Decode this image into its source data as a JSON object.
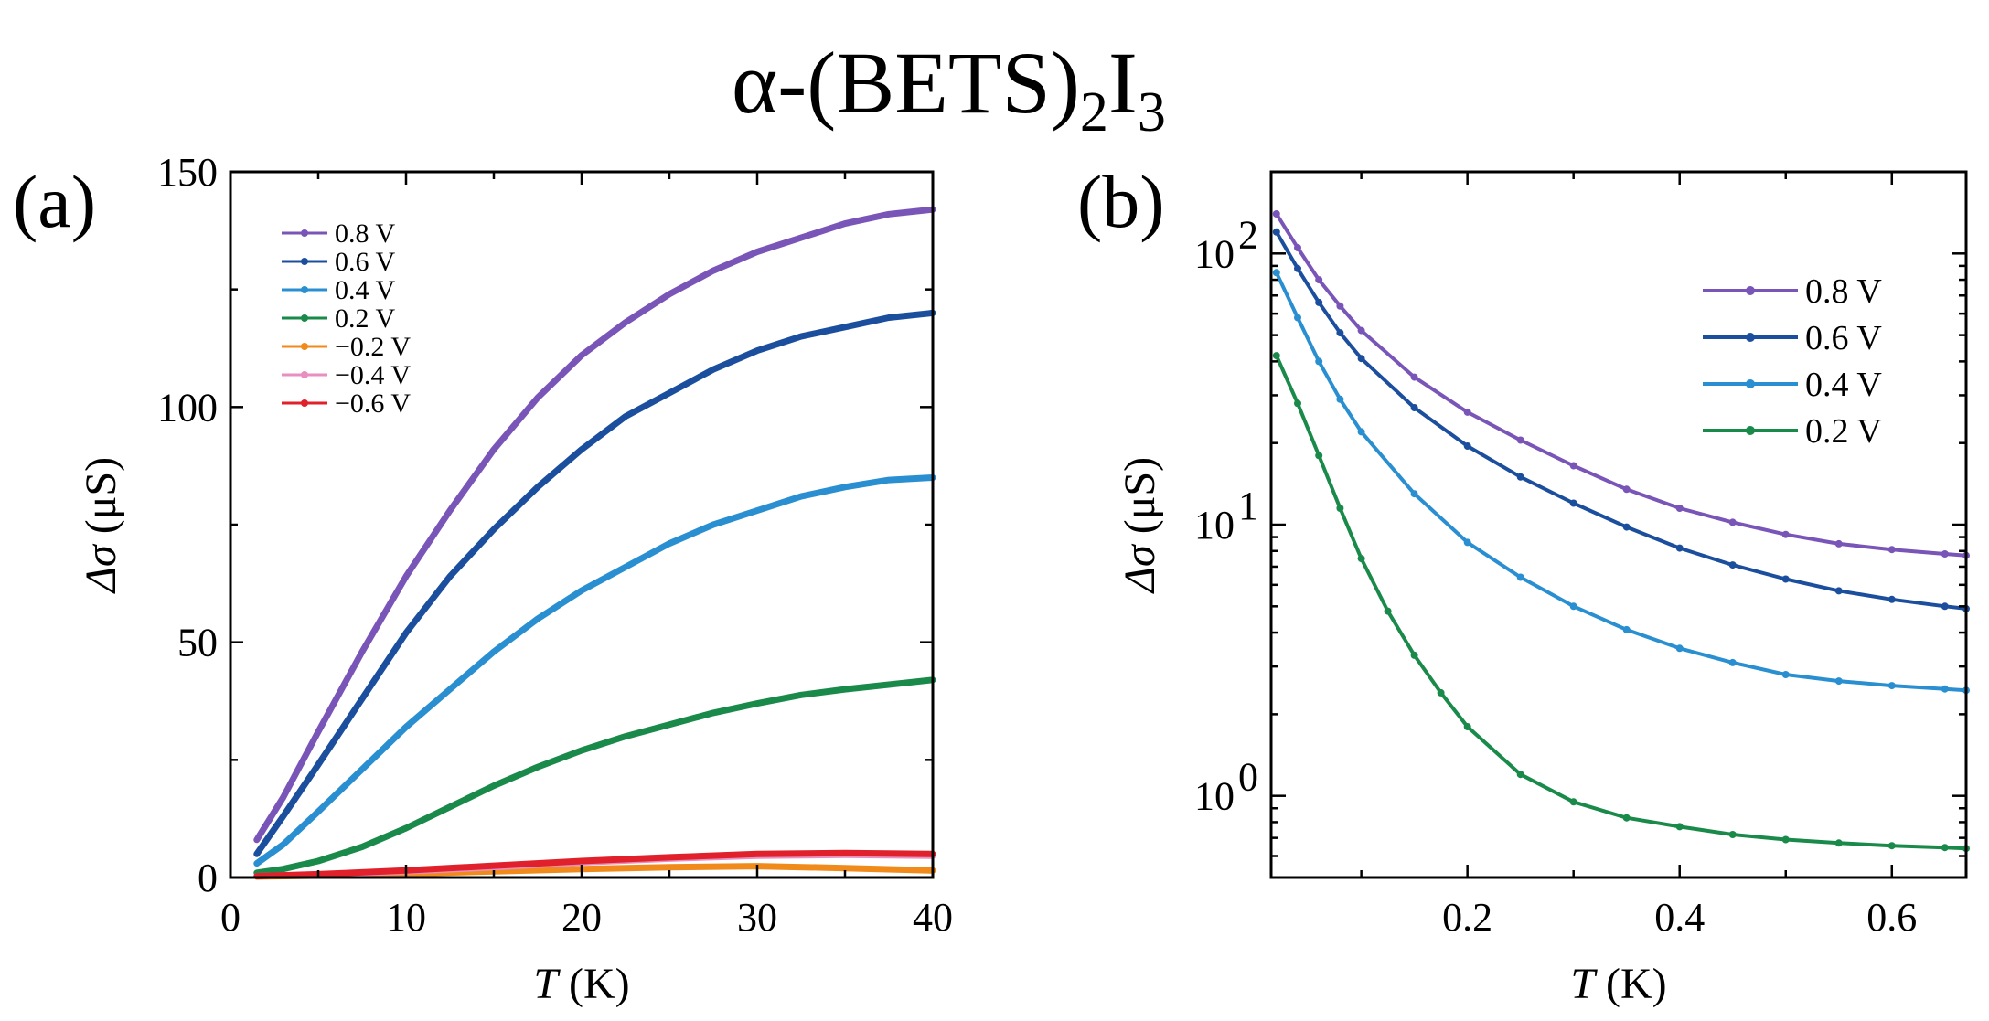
{
  "figure": {
    "title_main": "α-(BETS)",
    "title_sub1": "2",
    "title_mid": "I",
    "title_sub2": "3"
  },
  "colors": {
    "purple": "#7a55b8",
    "darkblue": "#1b4f9e",
    "lightblue": "#2a8fd0",
    "green": "#1a8a4a",
    "orange": "#f08a1a",
    "pink": "#e88fc0",
    "red": "#e0202a"
  },
  "chart_data": [
    {
      "type": "line",
      "panel_label": "(a)",
      "xlabel_italic": "T",
      "xlabel_rest": " (K)",
      "ylabel_italic": "Δσ",
      "ylabel_rest": " (μS)",
      "xlim": [
        0,
        40
      ],
      "ylim": [
        0,
        150
      ],
      "xticks": [
        0,
        10,
        20,
        30,
        40
      ],
      "xtick_labels": [
        "0",
        "10",
        "20",
        "30",
        "40"
      ],
      "yticks": [
        0,
        50,
        100,
        150
      ],
      "ytick_labels": [
        "0",
        "50",
        "100",
        "150"
      ],
      "legend_position": "top-left",
      "series": [
        {
          "name": "0.8 V",
          "color_key": "purple",
          "x": [
            1.5,
            3,
            5,
            7.5,
            10,
            12.5,
            15,
            17.5,
            20,
            22.5,
            25,
            27.5,
            30,
            32.5,
            35,
            37.5,
            40
          ],
          "y": [
            8,
            17,
            31,
            48,
            64,
            78,
            91,
            102,
            111,
            118,
            124,
            129,
            133,
            136,
            139,
            141,
            142
          ]
        },
        {
          "name": "0.6 V",
          "color_key": "darkblue",
          "x": [
            1.5,
            3,
            5,
            7.5,
            10,
            12.5,
            15,
            17.5,
            20,
            22.5,
            25,
            27.5,
            30,
            32.5,
            35,
            37.5,
            40
          ],
          "y": [
            5,
            13,
            24,
            38,
            52,
            64,
            74,
            83,
            91,
            98,
            103,
            108,
            112,
            115,
            117,
            119,
            120
          ]
        },
        {
          "name": "0.4 V",
          "color_key": "lightblue",
          "x": [
            1.5,
            3,
            5,
            7.5,
            10,
            12.5,
            15,
            17.5,
            20,
            22.5,
            25,
            27.5,
            30,
            32.5,
            35,
            37.5,
            40
          ],
          "y": [
            3,
            7,
            14,
            23,
            32,
            40,
            48,
            55,
            61,
            66,
            71,
            75,
            78,
            81,
            83,
            84.5,
            85
          ]
        },
        {
          "name": "0.2 V",
          "color_key": "green",
          "x": [
            1.5,
            3,
            5,
            7.5,
            10,
            12.5,
            15,
            17.5,
            20,
            22.5,
            25,
            27.5,
            30,
            32.5,
            35,
            37.5,
            40
          ],
          "y": [
            1,
            1.8,
            3.5,
            6.5,
            10.5,
            15,
            19.5,
            23.5,
            27,
            30,
            32.5,
            35,
            37,
            38.8,
            40,
            41,
            42
          ]
        },
        {
          "name": "−0.2 V",
          "color_key": "orange",
          "x": [
            1.5,
            5,
            10,
            15,
            20,
            25,
            30,
            35,
            40
          ],
          "y": [
            0.2,
            0.4,
            0.8,
            1.3,
            1.8,
            2.2,
            2.4,
            2.0,
            1.5
          ]
        },
        {
          "name": "−0.4 V",
          "color_key": "pink",
          "x": [
            1.5,
            5,
            10,
            15,
            20,
            25,
            30,
            35,
            40
          ],
          "y": [
            0.3,
            0.6,
            1.3,
            2.2,
            3.2,
            4.0,
            4.6,
            4.8,
            4.6
          ]
        },
        {
          "name": "−0.6 V",
          "color_key": "red",
          "x": [
            1.5,
            5,
            10,
            15,
            20,
            25,
            30,
            35,
            40
          ],
          "y": [
            0.3,
            0.7,
            1.5,
            2.5,
            3.5,
            4.3,
            5.0,
            5.2,
            5.0
          ]
        }
      ]
    },
    {
      "type": "line",
      "panel_label": "(b)",
      "xlabel_italic": "T",
      "xlabel_rest": " (K)",
      "ylabel_italic": "Δσ",
      "ylabel_rest": " (μS)",
      "xscale": "linear",
      "yscale": "log",
      "xlim": [
        0.015,
        0.67
      ],
      "ylim": [
        0.5,
        200
      ],
      "xticks": [
        0.2,
        0.4,
        0.6
      ],
      "xtick_labels": [
        "0.2",
        "0.4",
        "0.6"
      ],
      "yticks_major": [
        1,
        10,
        100
      ],
      "ytick_labels": [
        {
          "base": "10",
          "exp": "0"
        },
        {
          "base": "10",
          "exp": "1"
        },
        {
          "base": "10",
          "exp": "2"
        }
      ],
      "legend_position": "top-right",
      "series": [
        {
          "name": "0.8 V",
          "color_key": "purple",
          "x": [
            0.02,
            0.04,
            0.06,
            0.08,
            0.1,
            0.15,
            0.2,
            0.25,
            0.3,
            0.35,
            0.4,
            0.45,
            0.5,
            0.55,
            0.6,
            0.65,
            0.67
          ],
          "y": [
            140,
            105,
            80,
            64,
            52,
            35,
            26,
            20.5,
            16.5,
            13.5,
            11.5,
            10.2,
            9.2,
            8.5,
            8.1,
            7.8,
            7.7
          ]
        },
        {
          "name": "0.6 V",
          "color_key": "darkblue",
          "x": [
            0.02,
            0.04,
            0.06,
            0.08,
            0.1,
            0.15,
            0.2,
            0.25,
            0.3,
            0.35,
            0.4,
            0.45,
            0.5,
            0.55,
            0.6,
            0.65,
            0.67
          ],
          "y": [
            120,
            88,
            66,
            51,
            41,
            27,
            19.5,
            15,
            12,
            9.8,
            8.2,
            7.1,
            6.3,
            5.7,
            5.3,
            5.0,
            4.9
          ]
        },
        {
          "name": "0.4 V",
          "color_key": "lightblue",
          "x": [
            0.02,
            0.04,
            0.06,
            0.08,
            0.1,
            0.15,
            0.2,
            0.25,
            0.3,
            0.35,
            0.4,
            0.45,
            0.5,
            0.55,
            0.6,
            0.65,
            0.67
          ],
          "y": [
            85,
            58,
            40,
            29,
            22,
            13,
            8.6,
            6.4,
            5.0,
            4.1,
            3.5,
            3.1,
            2.8,
            2.65,
            2.55,
            2.48,
            2.45
          ]
        },
        {
          "name": "0.2 V",
          "color_key": "green",
          "x": [
            0.02,
            0.04,
            0.06,
            0.08,
            0.1,
            0.125,
            0.15,
            0.175,
            0.2,
            0.25,
            0.3,
            0.35,
            0.4,
            0.45,
            0.5,
            0.55,
            0.6,
            0.65,
            0.67
          ],
          "y": [
            42,
            28,
            18,
            11.5,
            7.5,
            4.8,
            3.3,
            2.4,
            1.8,
            1.2,
            0.95,
            0.83,
            0.77,
            0.72,
            0.69,
            0.67,
            0.655,
            0.645,
            0.64
          ]
        }
      ]
    }
  ]
}
